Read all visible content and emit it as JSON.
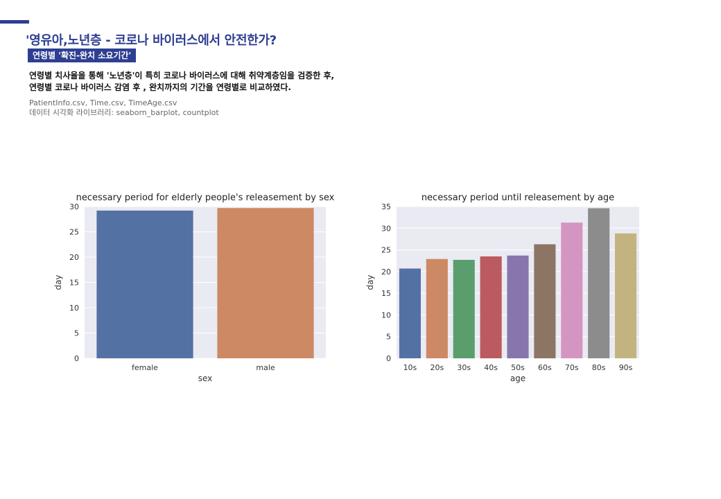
{
  "header": {
    "title": "'영유아,노년층 - 코로나 바이러스에서 안전한가?",
    "badge": "연령별 '확진-완치 소요기간'",
    "description": [
      "연령별 치사율을 통해 '노년층'이 특히 코로나 바이러스에 대해 취약계층임을 검증한 후,",
      "연령별 코로나 바이러스 감염 후 , 완치까지의 기간을 연령별로 비교하였다."
    ],
    "sources": [
      "PatientInfo.csv, Time.csv, TimeAge.csv",
      "데이터 시각화 라이브러리: seaborn_barplot, countplot"
    ]
  },
  "colors": {
    "accent": "#2e3e91",
    "plot_background": "#eaeaf2"
  },
  "chart_data": [
    {
      "type": "bar",
      "title": "necessary period for elderly people's releasement by sex",
      "xlabel": "sex",
      "ylabel": "day",
      "ylim": [
        0,
        30
      ],
      "yticks": [
        0,
        5,
        10,
        15,
        20,
        25,
        30
      ],
      "grid": true,
      "categories": [
        "female",
        "male"
      ],
      "values": [
        29.2,
        29.7
      ],
      "colors": [
        "#5471a4",
        "#cc8963"
      ]
    },
    {
      "type": "bar",
      "title": "necessary period until releasement by age",
      "xlabel": "age",
      "ylabel": "day",
      "ylim": [
        0,
        35
      ],
      "yticks": [
        0,
        5,
        10,
        15,
        20,
        25,
        30,
        35
      ],
      "grid": true,
      "categories": [
        "10s",
        "20s",
        "30s",
        "40s",
        "50s",
        "60s",
        "70s",
        "80s",
        "90s"
      ],
      "values": [
        20.7,
        22.9,
        22.7,
        23.5,
        23.7,
        26.3,
        31.3,
        34.6,
        28.8
      ],
      "colors": [
        "#5471a4",
        "#cc8963",
        "#5a9e6d",
        "#bb5b5f",
        "#8776ae",
        "#8c7565",
        "#d595c2",
        "#8c8c8c",
        "#c3b37f"
      ]
    }
  ]
}
